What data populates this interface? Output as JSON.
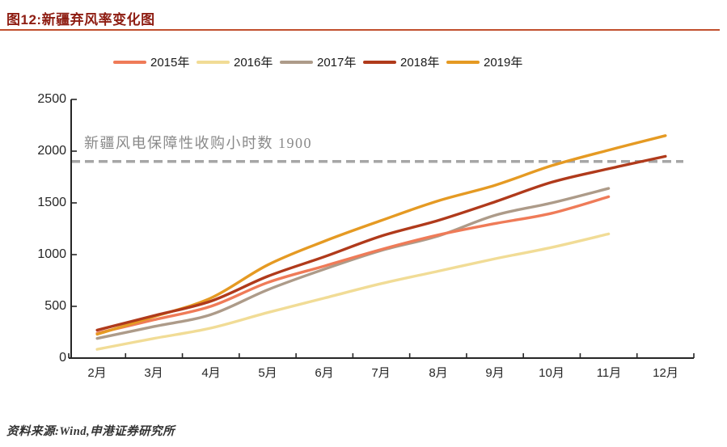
{
  "page": {
    "figure_title": "图12:新疆弃风率变化图",
    "source": "资料来源:Wind,申港证券研究所"
  },
  "colors": {
    "title": "#8E1D12",
    "title_rule": "#C1502E",
    "axis": "#262626",
    "reference_line": "#A6A6A6",
    "annotation_text": "#8a8a8a"
  },
  "chart_data": {
    "type": "line",
    "title": "新疆弃风率变化图",
    "xlabel": "",
    "ylabel": "",
    "ylim": [
      0,
      2500
    ],
    "yticks": [
      0,
      500,
      1000,
      1500,
      2000,
      2500
    ],
    "grid": false,
    "legend_position": "top",
    "categories": [
      "2月",
      "3月",
      "4月",
      "5月",
      "6月",
      "7月",
      "8月",
      "9月",
      "10月",
      "11月",
      "12月"
    ],
    "series": [
      {
        "name": "2015年",
        "color": "#EF7B58",
        "values": [
          240,
          370,
          500,
          730,
          890,
          1050,
          1190,
          1300,
          1400,
          1560,
          null
        ]
      },
      {
        "name": "2016年",
        "color": "#F1DC96",
        "values": [
          85,
          190,
          290,
          440,
          580,
          720,
          840,
          960,
          1070,
          1200,
          null
        ]
      },
      {
        "name": "2017年",
        "color": "#AD9B89",
        "values": [
          190,
          305,
          420,
          660,
          860,
          1040,
          1180,
          1380,
          1500,
          1640,
          null
        ]
      },
      {
        "name": "2018年",
        "color": "#B03A1B",
        "values": [
          270,
          410,
          550,
          790,
          980,
          1180,
          1330,
          1510,
          1700,
          1830,
          1950
        ]
      },
      {
        "name": "2019年",
        "color": "#E59A23",
        "values": [
          230,
          400,
          580,
          900,
          1130,
          1330,
          1520,
          1670,
          1860,
          2010,
          2150
        ]
      }
    ],
    "reference_line": {
      "value": 1900,
      "label": "新疆风电保障性收购小时数 1900",
      "style": "dashed",
      "color": "#A6A6A6"
    }
  }
}
